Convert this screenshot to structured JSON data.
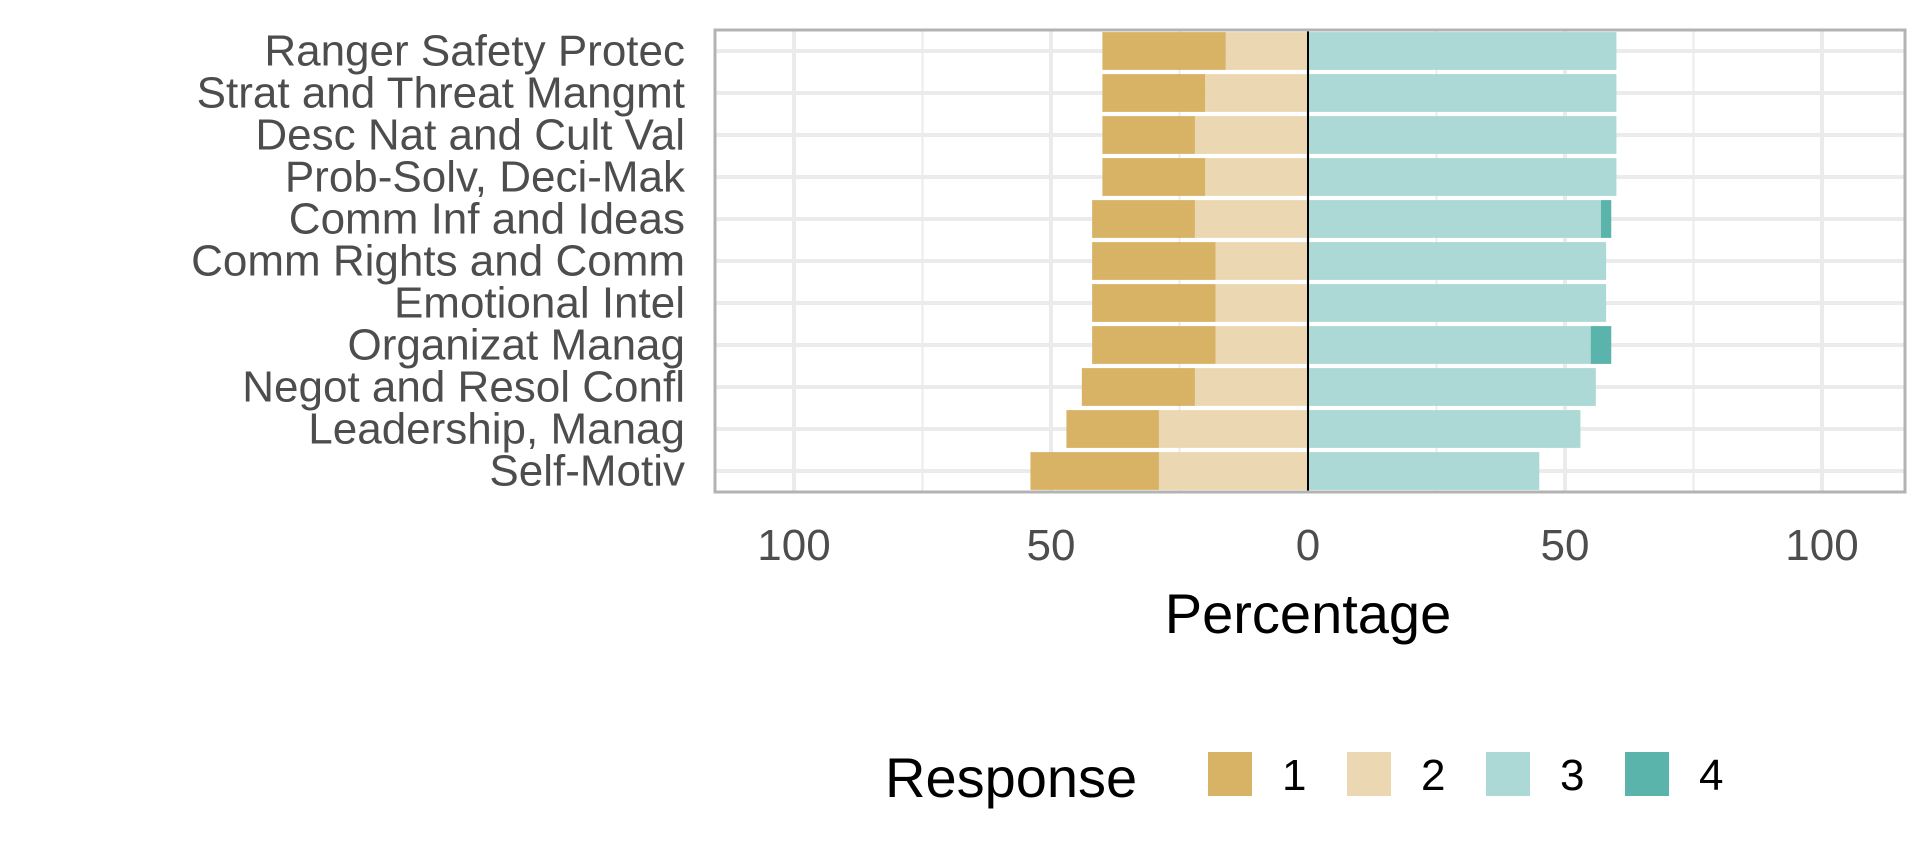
{
  "chart_data": {
    "type": "bar",
    "orientation": "horizontal",
    "stacked": "diverging",
    "title": "",
    "xlabel": "Percentage",
    "ylabel": "",
    "xlim": [
      -100,
      100
    ],
    "x_ticks": [
      "100",
      "50",
      "0",
      "50",
      "100"
    ],
    "grid": true,
    "legend_position": "bottom",
    "legend_title": "Response",
    "categories": [
      "Ranger Safety Protec",
      "Strat and Threat Mangmt",
      "Desc Nat and Cult Val",
      "Prob-Solv, Deci-Mak",
      "Comm Inf and Ideas",
      "Comm Rights and Comm",
      "Emotional Intel",
      "Organizat Manag",
      "Negot and Resol Confl",
      "Leadership, Manag",
      "Self-Motiv"
    ],
    "series": [
      {
        "name": "1",
        "color": "#D8B365",
        "side": "negative",
        "values": [
          24,
          20,
          18,
          20,
          20,
          24,
          24,
          24,
          22,
          18,
          25
        ]
      },
      {
        "name": "2",
        "color": "#EBD8B2",
        "side": "negative",
        "values": [
          16,
          20,
          22,
          20,
          22,
          18,
          18,
          18,
          22,
          29,
          29
        ]
      },
      {
        "name": "3",
        "color": "#ACD9D5",
        "side": "positive",
        "values": [
          60,
          60,
          60,
          60,
          57,
          58,
          58,
          55,
          56,
          53,
          45
        ]
      },
      {
        "name": "4",
        "color": "#5AB4AC",
        "side": "positive",
        "values": [
          0,
          0,
          0,
          0,
          2,
          0,
          0,
          4,
          0,
          0,
          0
        ]
      }
    ]
  }
}
